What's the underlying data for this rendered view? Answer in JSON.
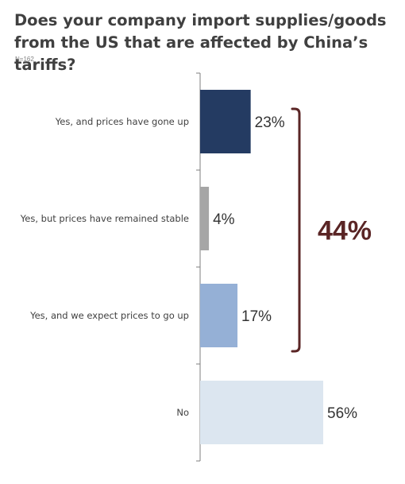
{
  "title": "Does your company import supplies/goods from the US that are affected by China’s tariffs?",
  "subtitle": "N=162",
  "chart_data": {
    "type": "bar",
    "orientation": "horizontal",
    "categories": [
      "Yes, and prices have gone up",
      "Yes, but prices have remained stable",
      "Yes, and we expect prices to go up",
      "No"
    ],
    "values": [
      23,
      4,
      17,
      56
    ],
    "value_labels": [
      "23%",
      "4%",
      "17%",
      "56%"
    ],
    "colors": [
      "#243b62",
      "#a6a6a6",
      "#95b0d6",
      "#dce6f0"
    ],
    "xlim": [
      0,
      56
    ],
    "grid": false,
    "bracket": {
      "label": "44%",
      "spans_categories": [
        0,
        1,
        2
      ],
      "color": "#5a2525"
    }
  }
}
